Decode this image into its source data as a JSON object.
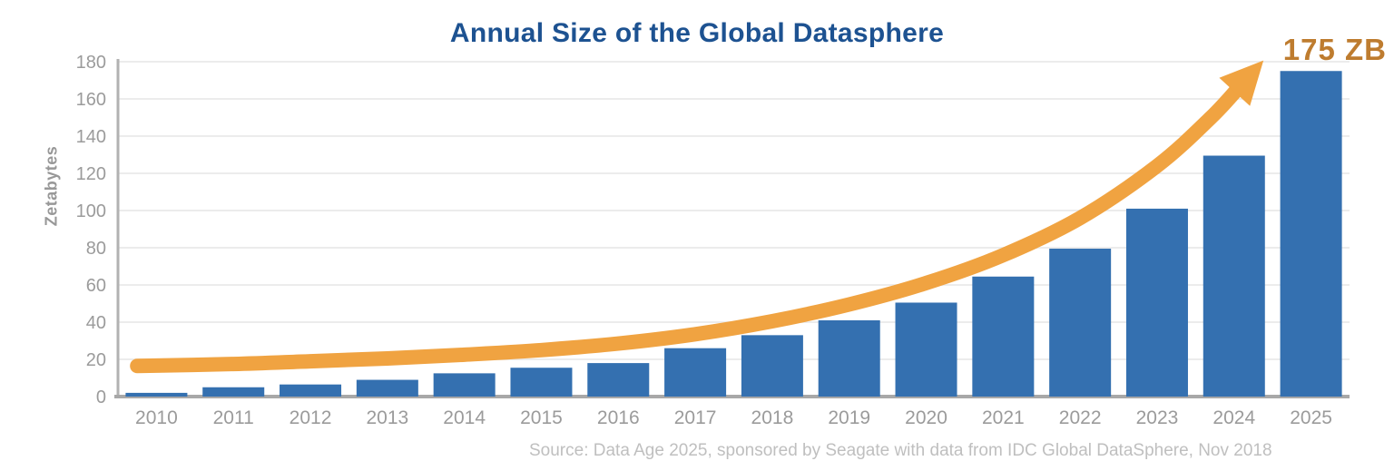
{
  "chart": {
    "title": "Annual Size of the Global Datasphere",
    "annotation": "175 ZB",
    "ylabel": "Zetabytes",
    "source": "Source: Data Age 2025, sponsored by Seagate with data from IDC Global DataSphere, Nov 2018"
  },
  "chart_data": {
    "type": "bar",
    "title": "Annual Size of the Global Datasphere",
    "xlabel": "",
    "ylabel": "Zetabytes",
    "categories": [
      "2010",
      "2011",
      "2012",
      "2013",
      "2014",
      "2015",
      "2016",
      "2017",
      "2018",
      "2019",
      "2020",
      "2021",
      "2022",
      "2023",
      "2024",
      "2025"
    ],
    "values": [
      2,
      5,
      6.5,
      9,
      12.5,
      15.5,
      18,
      26,
      33,
      41,
      50.5,
      64.5,
      79.5,
      101,
      129.5,
      175
    ],
    "ylim": [
      0,
      180
    ],
    "ytick_step": 20,
    "grid": true,
    "legend": "none",
    "bar_color": "#3470B0",
    "grid_color": "#ECECEC",
    "axis_color": "#A8A8A8",
    "tick_label_color": "#9B9B9B",
    "title_color": "#1D5291",
    "trend_color": "#F0A341",
    "annotation_color": "#BE7C2F",
    "annotation_text": "175 ZB",
    "trend_arrow": {
      "comment": "orange growth-trend arrow pointing to the 175 ZB label; pairs of [year-offset from 2010, value in ZB]",
      "points": [
        [
          -0.25,
          16.5
        ],
        [
          1,
          17.5
        ],
        [
          2,
          19
        ],
        [
          3,
          20.5
        ],
        [
          4,
          22.5
        ],
        [
          5,
          25
        ],
        [
          6,
          28.5
        ],
        [
          7,
          33.5
        ],
        [
          8,
          40.5
        ],
        [
          9,
          49.5
        ],
        [
          10,
          61
        ],
        [
          11,
          76
        ],
        [
          12,
          96
        ],
        [
          13,
          124
        ],
        [
          13.7,
          150
        ],
        [
          14.1,
          168
        ]
      ]
    }
  }
}
